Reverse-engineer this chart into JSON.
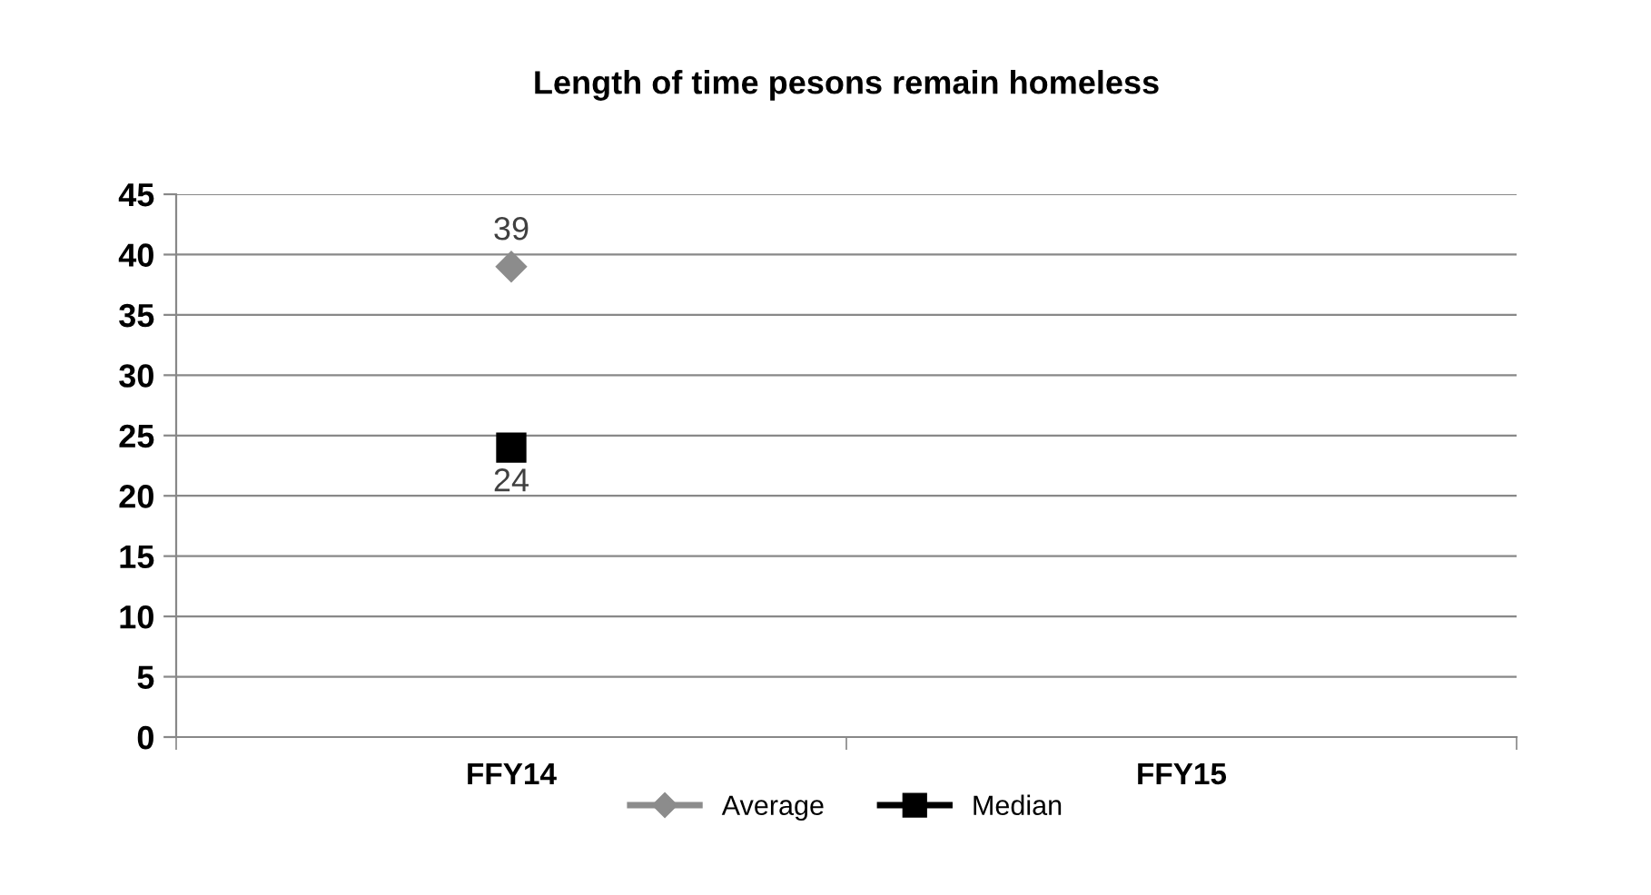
{
  "chart_data": {
    "type": "line",
    "title": "Length of time pesons remain homeless",
    "categories": [
      "FFY14",
      "FFY15"
    ],
    "series": [
      {
        "name": "Average",
        "color": "#8c8c8c",
        "marker": "diamond",
        "values": [
          39,
          null
        ]
      },
      {
        "name": "Median",
        "color": "#000000",
        "marker": "square",
        "values": [
          24,
          null
        ]
      }
    ],
    "ylim": [
      0,
      45
    ],
    "yticks": [
      0,
      5,
      10,
      15,
      20,
      25,
      30,
      35,
      40,
      45
    ],
    "grid": "y",
    "legend": "bottom",
    "data_labels": true
  }
}
